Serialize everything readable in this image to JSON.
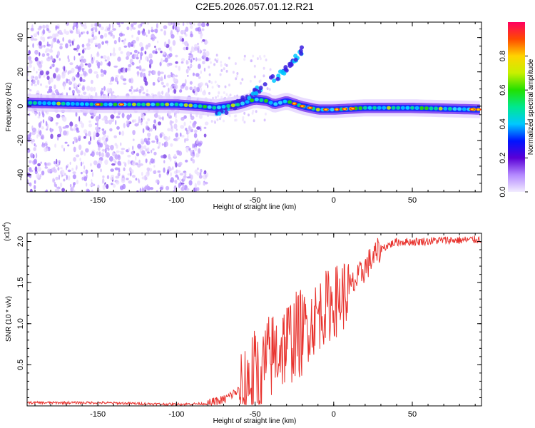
{
  "chart_data": [
    {
      "type": "heatmap",
      "title": "C2E5.2026.057.01.12.R21",
      "xlabel": "Height of straight line (km)",
      "ylabel": "Frequency (Hz)",
      "xlim": [
        -195,
        94
      ],
      "ylim": [
        -50,
        49
      ],
      "xticks": [
        "-150",
        "-100",
        "-50",
        "0",
        "50"
      ],
      "yticks": [
        "-40",
        "-20",
        "0",
        "20",
        "40"
      ],
      "colorbar": {
        "label": "Normalized spectral amplitude",
        "range": [
          0,
          1
        ],
        "ticks": [
          "0.0",
          "0.2",
          "0.4",
          "0.6",
          "0.8"
        ]
      },
      "ridge": [
        {
          "x": -195,
          "y": 2
        },
        {
          "x": -150,
          "y": 1
        },
        {
          "x": -100,
          "y": 1
        },
        {
          "x": -85,
          "y": 0
        },
        {
          "x": -75,
          "y": -1
        },
        {
          "x": -60,
          "y": 1
        },
        {
          "x": -50,
          "y": 4
        },
        {
          "x": -42,
          "y": 3
        },
        {
          "x": -38,
          "y": 1
        },
        {
          "x": -30,
          "y": 3
        },
        {
          "x": -20,
          "y": 0
        },
        {
          "x": -10,
          "y": -2
        },
        {
          "x": 0,
          "y": -2
        },
        {
          "x": 20,
          "y": -1
        },
        {
          "x": 50,
          "y": -1
        },
        {
          "x": 94,
          "y": -2
        }
      ],
      "branch": [
        {
          "x": -75,
          "y": -5
        },
        {
          "x": -60,
          "y": 2
        },
        {
          "x": -50,
          "y": 8
        },
        {
          "x": -42,
          "y": 14
        },
        {
          "x": -35,
          "y": 18
        },
        {
          "x": -28,
          "y": 24
        },
        {
          "x": -20,
          "y": 33
        }
      ]
    },
    {
      "type": "line",
      "xlabel": "Height of straight line (km)",
      "ylabel": "SNR (10 * v/v)",
      "yscale_label": "(x10",
      "yscale_exp": "4",
      "xlim": [
        -195,
        94
      ],
      "ylim": [
        0,
        2.1
      ],
      "xticks": [
        "-150",
        "-100",
        "-50",
        "0",
        "50"
      ],
      "yticks": [
        "0.5",
        "1.0",
        "1.5",
        "2.0"
      ],
      "series": [
        {
          "name": "SNR",
          "color": "#e8322d",
          "x": [
            -195,
            -150,
            -100,
            -80,
            -70,
            -60,
            -55,
            -50,
            -45,
            -40,
            -35,
            -30,
            -25,
            -20,
            -15,
            -10,
            -5,
            0,
            5,
            10,
            15,
            20,
            25,
            30,
            35,
            40,
            50,
            60,
            70,
            80,
            94
          ],
          "y": [
            0.04,
            0.04,
            0.02,
            0.03,
            0.08,
            0.2,
            0.35,
            0.45,
            0.55,
            0.65,
            0.75,
            0.82,
            0.9,
            0.95,
            1.05,
            1.15,
            1.25,
            1.3,
            1.38,
            1.45,
            1.55,
            1.7,
            1.82,
            1.92,
            1.96,
            2.0,
            2.0,
            2.01,
            2.02,
            2.02,
            2.03
          ]
        }
      ]
    }
  ]
}
